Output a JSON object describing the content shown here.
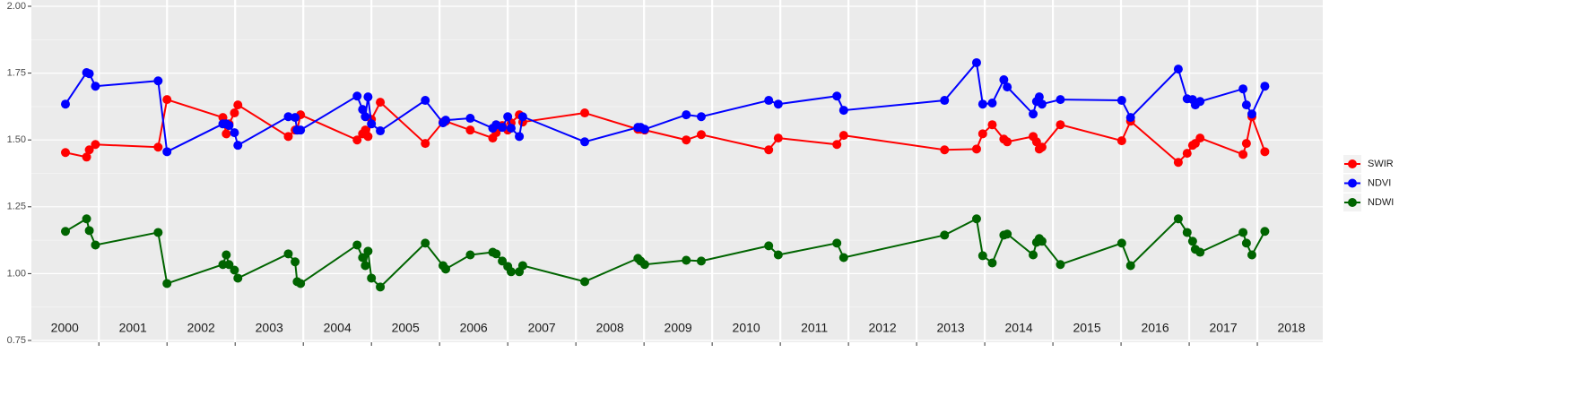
{
  "chart_data": {
    "type": "line",
    "x": [
      2000.51,
      2000.82,
      2000.86,
      2000.95,
      2001.87,
      2002.0,
      2002.82,
      2002.87,
      2002.91,
      2002.99,
      2003.04,
      2003.78,
      2003.88,
      2003.91,
      2003.96,
      2004.79,
      2004.87,
      2004.91,
      2004.95,
      2005.0,
      2005.13,
      2005.79,
      2006.05,
      2006.09,
      2006.45,
      2006.78,
      2006.83,
      2006.92,
      2007.0,
      2007.05,
      2007.17,
      2007.22,
      2008.13,
      2008.91,
      2008.95,
      2009.01,
      2009.62,
      2009.84,
      2010.83,
      2010.97,
      2011.83,
      2011.93,
      2013.41,
      2013.88,
      2013.97,
      2014.11,
      2014.28,
      2014.33,
      2014.71,
      2014.76,
      2014.8,
      2014.84,
      2015.11,
      2016.01,
      2016.14,
      2016.84,
      2016.97,
      2017.05,
      2017.09,
      2017.16,
      2017.79,
      2017.84,
      2017.92,
      2018.11
    ],
    "series": [
      {
        "name": "SWIR",
        "color": "#ff0000",
        "values": [
          1.453,
          1.436,
          1.463,
          1.483,
          1.473,
          1.651,
          1.584,
          1.523,
          1.56,
          1.601,
          1.631,
          1.513,
          1.537,
          1.537,
          1.594,
          1.5,
          1.523,
          1.537,
          1.513,
          1.577,
          1.641,
          1.487,
          1.567,
          1.57,
          1.537,
          1.507,
          1.527,
          1.554,
          1.537,
          1.564,
          1.594,
          1.567,
          1.601,
          1.54,
          1.54,
          1.537,
          1.5,
          1.52,
          1.463,
          1.507,
          1.483,
          1.517,
          1.463,
          1.466,
          1.523,
          1.557,
          1.503,
          1.493,
          1.513,
          1.493,
          1.466,
          1.473,
          1.557,
          1.497,
          1.57,
          1.416,
          1.45,
          1.48,
          1.487,
          1.507,
          1.446,
          1.487,
          1.587,
          1.456
        ]
      },
      {
        "name": "NDVI",
        "color": "#0000ff",
        "values": [
          1.634,
          1.752,
          1.748,
          1.701,
          1.721,
          1.456,
          1.56,
          1.56,
          1.554,
          1.527,
          1.48,
          1.587,
          1.584,
          1.537,
          1.537,
          1.664,
          1.614,
          1.587,
          1.661,
          1.56,
          1.534,
          1.648,
          1.564,
          1.574,
          1.581,
          1.544,
          1.557,
          1.547,
          1.587,
          1.544,
          1.513,
          1.587,
          1.493,
          1.547,
          1.547,
          1.54,
          1.594,
          1.587,
          1.648,
          1.634,
          1.664,
          1.611,
          1.648,
          1.789,
          1.634,
          1.638,
          1.725,
          1.698,
          1.597,
          1.644,
          1.661,
          1.634,
          1.651,
          1.648,
          1.584,
          1.765,
          1.654,
          1.651,
          1.631,
          1.644,
          1.691,
          1.631,
          1.597,
          1.701
        ]
      },
      {
        "name": "NDWI",
        "color": "#006400",
        "values": [
          1.158,
          1.205,
          1.161,
          1.107,
          1.154,
          0.963,
          1.034,
          1.07,
          1.034,
          1.013,
          0.983,
          1.074,
          1.044,
          0.97,
          0.963,
          1.107,
          1.06,
          1.03,
          1.084,
          0.983,
          0.95,
          1.114,
          1.03,
          1.017,
          1.07,
          1.08,
          1.074,
          1.047,
          1.027,
          1.007,
          1.007,
          1.03,
          0.97,
          1.057,
          1.047,
          1.034,
          1.05,
          1.047,
          1.104,
          1.07,
          1.114,
          1.06,
          1.144,
          1.205,
          1.067,
          1.04,
          1.144,
          1.148,
          1.07,
          1.117,
          1.131,
          1.121,
          1.034,
          1.114,
          1.03,
          1.205,
          1.154,
          1.121,
          1.091,
          1.08,
          1.154,
          1.114,
          1.07,
          1.158
        ]
      }
    ],
    "xlim": [
      2000.01,
      2018.96
    ],
    "xgrid": [
      2001,
      2002,
      2003,
      2004,
      2005,
      2006,
      2007,
      2008,
      2009,
      2010,
      2011,
      2012,
      2013,
      2014,
      2015,
      2016,
      2017,
      2018
    ],
    "xticks": [
      {
        "value": 2000.5,
        "label": "2000"
      },
      {
        "value": 2001.5,
        "label": "2001"
      },
      {
        "value": 2002.5,
        "label": "2002"
      },
      {
        "value": 2003.5,
        "label": "2003"
      },
      {
        "value": 2004.5,
        "label": "2004"
      },
      {
        "value": 2005.5,
        "label": "2005"
      },
      {
        "value": 2006.5,
        "label": "2006"
      },
      {
        "value": 2007.5,
        "label": "2007"
      },
      {
        "value": 2008.5,
        "label": "2008"
      },
      {
        "value": 2009.5,
        "label": "2009"
      },
      {
        "value": 2010.5,
        "label": "2010"
      },
      {
        "value": 2011.5,
        "label": "2011"
      },
      {
        "value": 2012.5,
        "label": "2012"
      },
      {
        "value": 2013.5,
        "label": "2013"
      },
      {
        "value": 2014.5,
        "label": "2014"
      },
      {
        "value": 2015.5,
        "label": "2015"
      },
      {
        "value": 2016.5,
        "label": "2016"
      },
      {
        "value": 2017.5,
        "label": "2017"
      },
      {
        "value": 2018.5,
        "label": "2018"
      }
    ],
    "ylim": [
      0.75,
      2.0
    ],
    "yticks": [
      {
        "value": 0.75,
        "label": "0.75"
      },
      {
        "value": 1.0,
        "label": "1.00"
      },
      {
        "value": 1.25,
        "label": "1.25"
      },
      {
        "value": 1.5,
        "label": "1.50"
      },
      {
        "value": 1.75,
        "label": "1.75"
      },
      {
        "value": 2.0,
        "label": "2.00"
      }
    ],
    "grid": true,
    "legend": "right"
  }
}
